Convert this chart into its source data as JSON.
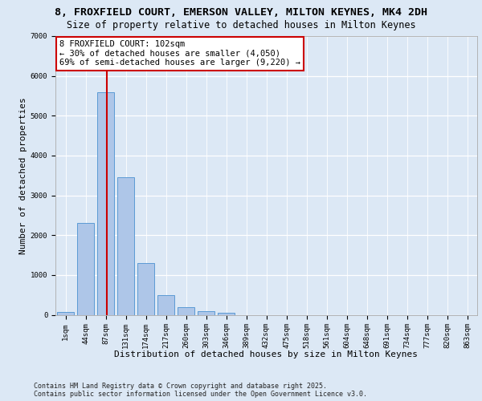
{
  "title_line1": "8, FROXFIELD COURT, EMERSON VALLEY, MILTON KEYNES, MK4 2DH",
  "title_line2": "Size of property relative to detached houses in Milton Keynes",
  "xlabel": "Distribution of detached houses by size in Milton Keynes",
  "ylabel": "Number of detached properties",
  "categories": [
    "1sqm",
    "44sqm",
    "87sqm",
    "131sqm",
    "174sqm",
    "217sqm",
    "260sqm",
    "303sqm",
    "346sqm",
    "389sqm",
    "432sqm",
    "475sqm",
    "518sqm",
    "561sqm",
    "604sqm",
    "648sqm",
    "691sqm",
    "734sqm",
    "777sqm",
    "820sqm",
    "863sqm"
  ],
  "values": [
    75,
    2300,
    5600,
    3450,
    1300,
    500,
    200,
    90,
    50,
    0,
    0,
    0,
    0,
    0,
    0,
    0,
    0,
    0,
    0,
    0,
    0
  ],
  "bar_color": "#aec6e8",
  "bar_edge_color": "#5b9bd5",
  "vline_color": "#cc0000",
  "vline_x_index": 2,
  "annotation_text": "8 FROXFIELD COURT: 102sqm\n← 30% of detached houses are smaller (4,050)\n69% of semi-detached houses are larger (9,220) →",
  "annotation_box_facecolor": "#ffffff",
  "annotation_box_edgecolor": "#cc0000",
  "ylim": [
    0,
    7000
  ],
  "yticks": [
    0,
    1000,
    2000,
    3000,
    4000,
    5000,
    6000,
    7000
  ],
  "bg_color": "#dce8f5",
  "footer_line1": "Contains HM Land Registry data © Crown copyright and database right 2025.",
  "footer_line2": "Contains public sector information licensed under the Open Government Licence v3.0.",
  "title_fontsize": 9.5,
  "subtitle_fontsize": 8.5,
  "tick_fontsize": 6.5,
  "ylabel_fontsize": 8,
  "xlabel_fontsize": 8,
  "annotation_fontsize": 7.5,
  "footer_fontsize": 6.0
}
